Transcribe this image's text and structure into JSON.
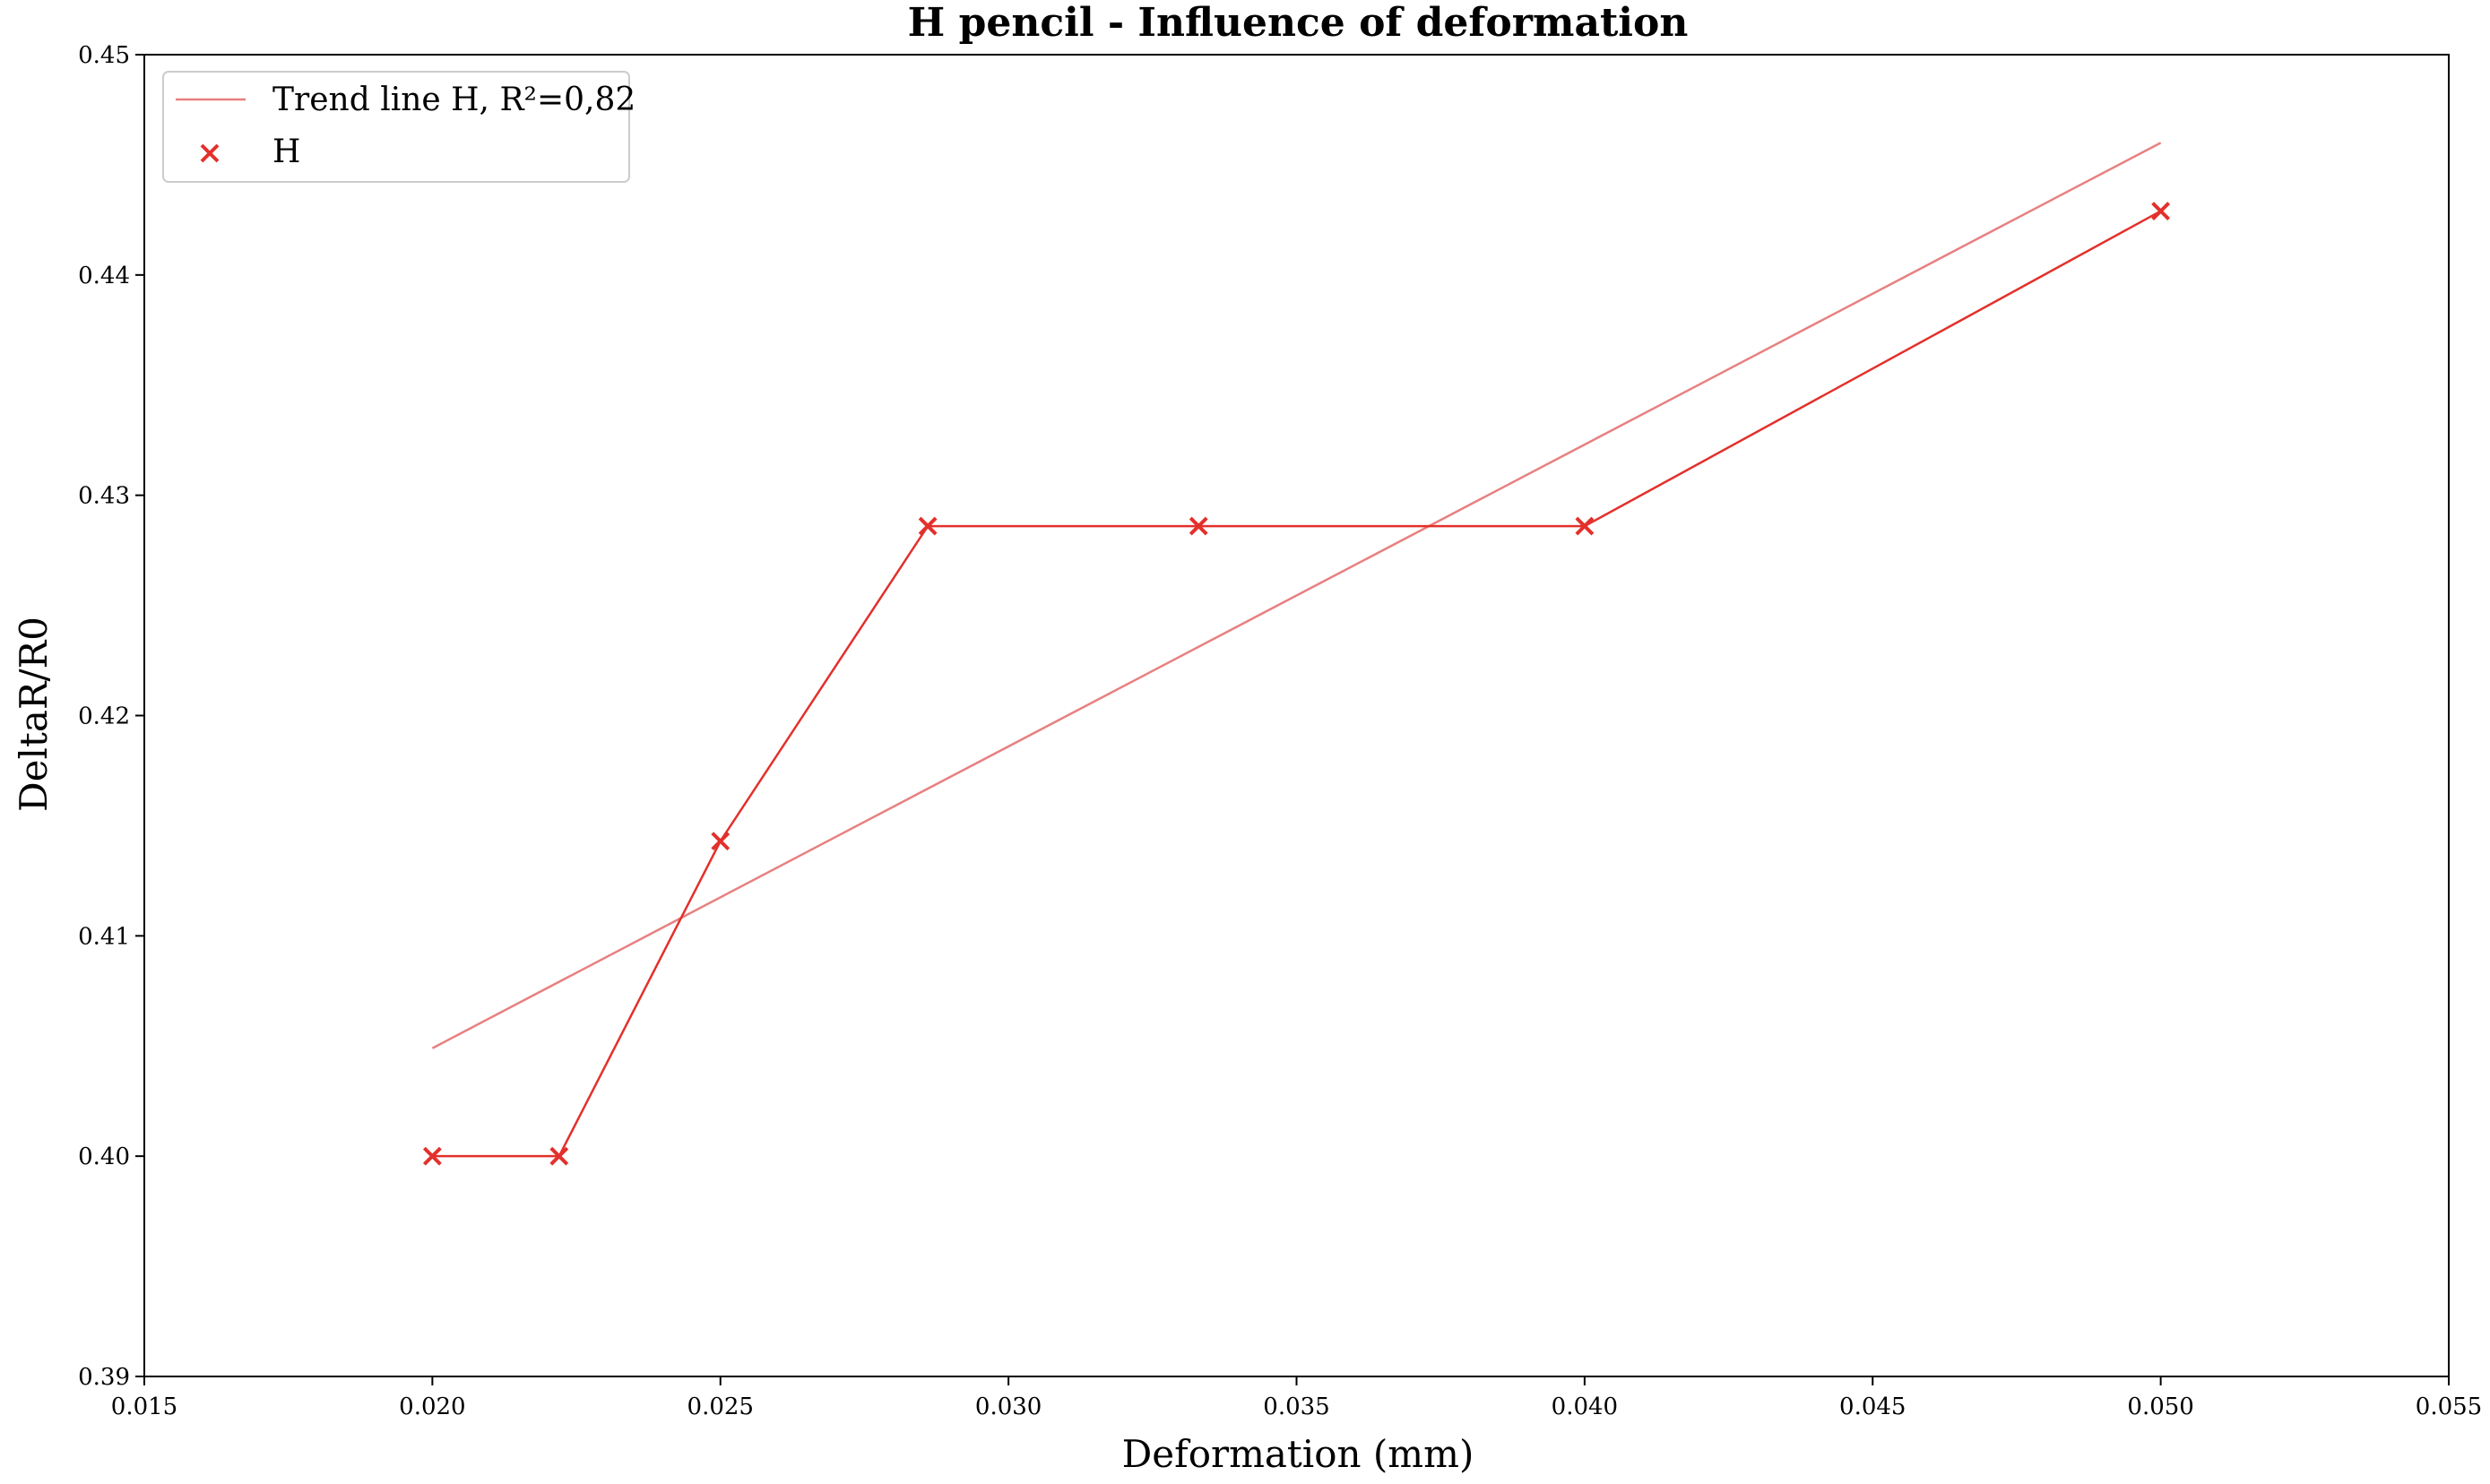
{
  "chart_data": {
    "type": "line",
    "title": "H pencil - Influence of deformation",
    "xlabel": "Deformation (mm)",
    "ylabel": "DeltaR/R0",
    "xlim": [
      0.015,
      0.055
    ],
    "ylim": [
      0.39,
      0.45
    ],
    "xticks": [
      0.015,
      0.02,
      0.025,
      0.03,
      0.035,
      0.04,
      0.045,
      0.05,
      0.055
    ],
    "xtick_labels": [
      "0.015",
      "0.020",
      "0.025",
      "0.030",
      "0.035",
      "0.040",
      "0.045",
      "0.050",
      "0.055"
    ],
    "yticks": [
      0.39,
      0.4,
      0.41,
      0.42,
      0.43,
      0.44,
      0.45
    ],
    "ytick_labels": [
      "0.39",
      "0.40",
      "0.41",
      "0.42",
      "0.43",
      "0.44",
      "0.45"
    ],
    "grid": false,
    "legend_position": "top-left",
    "series": [
      {
        "name": "Trend line H, R²=0,82",
        "kind": "line",
        "color": "#e88080",
        "x": [
          0.02,
          0.05
        ],
        "y": [
          0.4049,
          0.446
        ]
      },
      {
        "name": "H",
        "kind": "scatter-line",
        "marker": "x",
        "color": "#e3302b",
        "x": [
          0.02,
          0.0222,
          0.025,
          0.0286,
          0.0333,
          0.04,
          0.05
        ],
        "y": [
          0.4,
          0.4,
          0.4143,
          0.4286,
          0.4286,
          0.4286,
          0.4429
        ]
      }
    ]
  }
}
